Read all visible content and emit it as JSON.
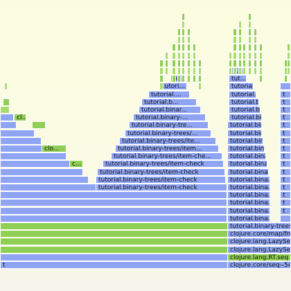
{
  "colors": {
    "java": "#8fa5f3",
    "clojure": "#8fcf53",
    "background": "#fbfbe4"
  },
  "frame_labels": {
    "stack_a": "tutorial.binary-trees/item-check",
    "stack_a_2": "tutorial.binary-trees/item-che...",
    "stack_a_3": "tutorial.binary-trees/item...",
    "stack_a_4": "tutorial.binary-trees/ite...",
    "stack_a_5": "tutorial.binary-trees/...",
    "stack_a_6": "tutorial.binary-tre...",
    "stack_a_7": "tutorial.binary-...",
    "stack_a_8": "tutorial.binar...",
    "stack_a_9": "tutorial.b...",
    "stack_a_10": "tutorial....",
    "stack_a_11": "tutori...",
    "stack_a_12": "tu...",
    "stack_b": "tutorial.binary-trees/",
    "stack_b_2": "tutorial.bina...",
    "stack_b_3": "tutorial.bin...",
    "stack_b_4": "tutorial.bi...",
    "stack_b_5": "tutoria...",
    "stack_b_6": "tut...",
    "stack_b_7": "t...",
    "map_fn": "clojure.core/map/fn--",
    "lazyseq": "clojure.lang.LazySeq.",
    "lazyseq_2": "clojure.lang.LazySeq",
    "rt_seq": "clojure.lang.RT.seq",
    "core_seq": "clojure.core/seq--548",
    "cl": "cl...",
    "clo": "clo...",
    "c": "c...",
    "t": "t"
  }
}
